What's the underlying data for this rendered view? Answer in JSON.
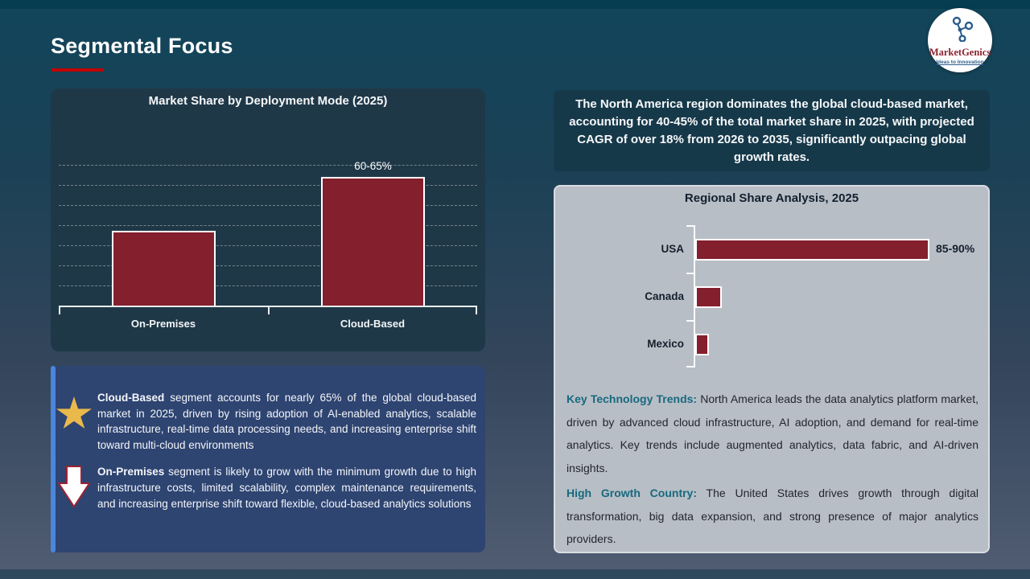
{
  "slide": {
    "title": "Segmental Focus",
    "accent_color": "#c00000",
    "bar_color": "#841f2d"
  },
  "logo": {
    "brand": "MarketGenics",
    "tagline": "Ideas to Innovation"
  },
  "na_note": "The North America region dominates the global cloud-based market, accounting for 40-45% of the total market share in 2025, with projected CAGR of over 18% from 2026 to 2035, significantly outpacing global growth rates.",
  "chart_data": [
    {
      "type": "bar",
      "title": "Market Share by Deployment Mode (2025)",
      "categories": [
        "On-Premises",
        "Cloud-Based"
      ],
      "values": [
        38,
        65
      ],
      "value_labels": [
        "",
        "60-65%"
      ],
      "ylim": [
        0,
        72
      ],
      "grid": true,
      "legend": "none",
      "note": "Only the Cloud-Based bar carries a data label (60-65%); On-Premises height estimated from gridlines (~35-40%)"
    },
    {
      "type": "bar",
      "orientation": "horizontal",
      "title": "Regional Share Analysis, 2025",
      "categories": [
        "USA",
        "Canada",
        "Mexico"
      ],
      "values": [
        87.5,
        10,
        5
      ],
      "value_labels": [
        "85-90%",
        "",
        ""
      ],
      "xlim": [
        0,
        100
      ],
      "grid": false,
      "legend": "none",
      "note": "Only USA carries a data label (85-90%); Canada and Mexico estimated from bar lengths"
    }
  ],
  "insights": [
    {
      "icon": "star",
      "lead": "Cloud-Based",
      "text": " segment accounts for nearly 65% of the global cloud-based market in 2025, driven by rising adoption of AI-enabled analytics, scalable infrastructure, real-time data processing needs, and increasing enterprise shift toward multi-cloud environments"
    },
    {
      "icon": "down-arrow",
      "lead": "On-Premises",
      "text": " segment is likely to grow with the minimum growth due to high infrastructure costs, limited scalability, complex maintenance requirements, and increasing enterprise shift toward flexible, cloud-based analytics solutions"
    }
  ],
  "regional_insights": [
    {
      "lead": "Key Technology Trends:",
      "text": " North America leads the data analytics platform market, driven by advanced cloud infrastructure, AI adoption, and demand for real-time analytics. Key trends include augmented analytics, data fabric, and AI-driven insights."
    },
    {
      "lead": "High Growth Country:",
      "text": " The United States drives growth through digital transformation, big data expansion, and strong presence of major analytics providers."
    }
  ]
}
